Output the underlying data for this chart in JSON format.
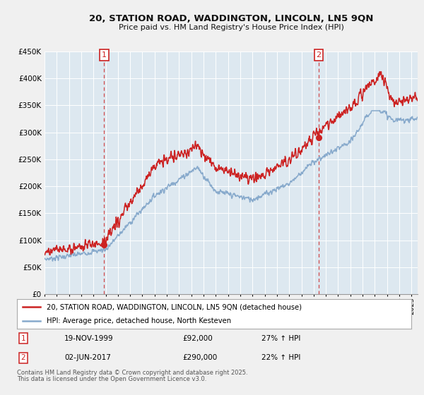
{
  "title_line1": "20, STATION ROAD, WADDINGTON, LINCOLN, LN5 9QN",
  "title_line2": "Price paid vs. HM Land Registry's House Price Index (HPI)",
  "ytick_values": [
    0,
    50000,
    100000,
    150000,
    200000,
    250000,
    300000,
    350000,
    400000,
    450000
  ],
  "sale1": {
    "date_num": 1999.88,
    "price": 92000,
    "label": "1",
    "date_str": "19-NOV-1999",
    "price_str": "£92,000",
    "hpi_pct": "27% ↑ HPI"
  },
  "sale2": {
    "date_num": 2017.42,
    "price": 290000,
    "label": "2",
    "date_str": "02-JUN-2017",
    "price_str": "£290,000",
    "hpi_pct": "22% ↑ HPI"
  },
  "legend_line1": "20, STATION ROAD, WADDINGTON, LINCOLN, LN5 9QN (detached house)",
  "legend_line2": "HPI: Average price, detached house, North Kesteven",
  "footer_line1": "Contains HM Land Registry data © Crown copyright and database right 2025.",
  "footer_line2": "This data is licensed under the Open Government Licence v3.0.",
  "red_color": "#cc2222",
  "blue_color": "#88aacc",
  "background_color": "#f0f0f0",
  "plot_bg_color": "#dde8f0",
  "grid_color": "#ffffff"
}
